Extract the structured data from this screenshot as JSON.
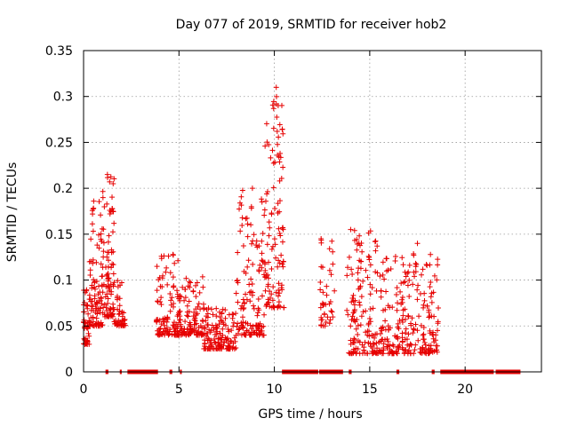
{
  "chart_data": {
    "type": "scatter",
    "title": "Day 077 of 2019, SRMTID for receiver hob2",
    "xlabel": "GPS time / hours",
    "ylabel": "SRMTID / TECUs",
    "xlim": [
      0,
      24
    ],
    "ylim": [
      0,
      0.35
    ],
    "x_ticks": [
      0,
      5,
      10,
      15,
      20
    ],
    "x_tick_labels": [
      "0",
      "5",
      "10",
      "15",
      "20"
    ],
    "y_ticks": [
      0,
      0.05,
      0.1,
      0.15,
      0.2,
      0.25,
      0.3,
      0.35
    ],
    "y_tick_labels": [
      "0",
      "0.05",
      "0.1",
      "0.15",
      "0.2",
      "0.25",
      "0.3",
      "0.35"
    ],
    "grid": true,
    "marker": "+",
    "color": "#e60000",
    "segments": [
      {
        "x_start": 0.0,
        "x_end": 0.3,
        "low": 0.03,
        "high": 0.09,
        "count": 45
      },
      {
        "x_start": 0.3,
        "x_end": 1.0,
        "low": 0.05,
        "high": 0.19,
        "count": 95
      },
      {
        "x_start": 1.0,
        "x_end": 1.6,
        "low": 0.06,
        "high": 0.215,
        "count": 90
      },
      {
        "x_start": 1.6,
        "x_end": 2.2,
        "low": 0.05,
        "high": 0.1,
        "count": 45
      },
      {
        "x_start": 3.8,
        "x_end": 5.0,
        "low": 0.04,
        "high": 0.13,
        "count": 110
      },
      {
        "x_start": 5.0,
        "x_end": 6.3,
        "low": 0.04,
        "high": 0.105,
        "count": 110
      },
      {
        "x_start": 6.3,
        "x_end": 8.0,
        "low": 0.025,
        "high": 0.07,
        "count": 140
      },
      {
        "x_start": 8.0,
        "x_end": 9.5,
        "low": 0.04,
        "high": 0.2,
        "count": 130
      },
      {
        "x_start": 9.5,
        "x_end": 10.5,
        "low": 0.07,
        "high": 0.31,
        "count": 110
      },
      {
        "x_start": 12.4,
        "x_end": 13.2,
        "low": 0.05,
        "high": 0.145,
        "count": 40
      },
      {
        "x_start": 13.8,
        "x_end": 15.5,
        "low": 0.02,
        "high": 0.155,
        "count": 140
      },
      {
        "x_start": 15.5,
        "x_end": 18.6,
        "low": 0.02,
        "high": 0.13,
        "count": 240
      }
    ],
    "peaks": [
      {
        "x": 10.1,
        "y": 0.31
      },
      {
        "x": 10.2,
        "y": 0.29
      },
      {
        "x": 10.15,
        "y": 0.262
      },
      {
        "x": 1.25,
        "y": 0.215
      },
      {
        "x": 1.55,
        "y": 0.205
      },
      {
        "x": 8.85,
        "y": 0.2
      },
      {
        "x": 10.3,
        "y": 0.238
      },
      {
        "x": 14.0,
        "y": 0.155
      },
      {
        "x": 12.45,
        "y": 0.145
      },
      {
        "x": 17.5,
        "y": 0.14
      }
    ],
    "data_gaps": [
      {
        "start": 1.15,
        "end": 1.3
      },
      {
        "start": 1.9,
        "end": 2.0
      },
      {
        "start": 2.3,
        "end": 3.9
      },
      {
        "start": 4.5,
        "end": 4.65
      },
      {
        "start": 5.05,
        "end": 5.15
      },
      {
        "start": 10.4,
        "end": 12.3
      },
      {
        "start": 12.35,
        "end": 13.6
      },
      {
        "start": 13.9,
        "end": 14.05
      },
      {
        "start": 16.4,
        "end": 16.55
      },
      {
        "start": 18.25,
        "end": 18.4
      },
      {
        "start": 18.7,
        "end": 21.5
      },
      {
        "start": 21.6,
        "end": 22.9
      }
    ]
  }
}
